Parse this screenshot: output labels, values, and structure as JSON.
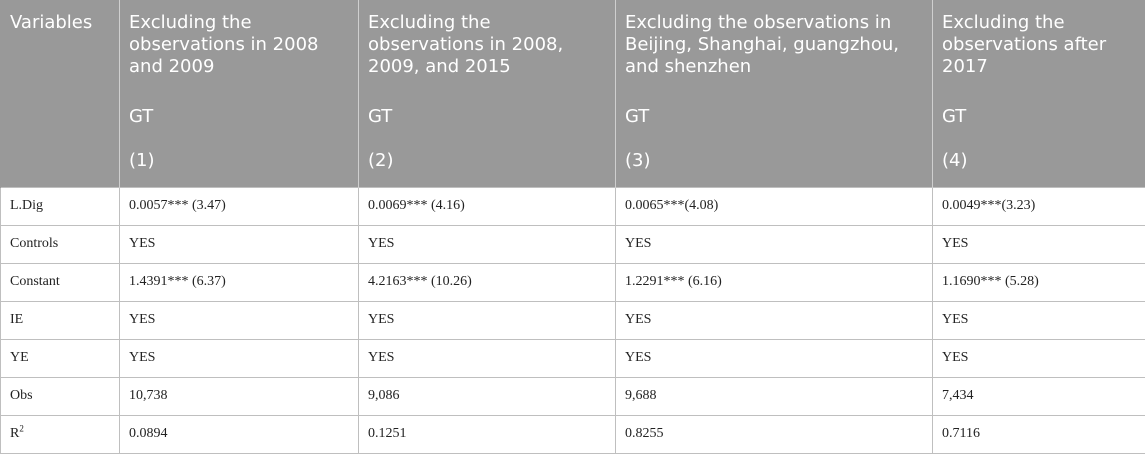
{
  "header": {
    "columns": [
      "Variables",
      "Excluding the observations in 2008 and 2009",
      "Excluding the observations in 2008, 2009, and 2015",
      "Excluding the observations in Beijing, Shanghai, guangzhou, and shenzhen",
      "Excluding the observations after 2017"
    ],
    "dependent": [
      "GT",
      "GT",
      "GT",
      "GT"
    ],
    "numbers": [
      "(1)",
      "(2)",
      "(3)",
      "(4)"
    ]
  },
  "rows": [
    {
      "label": "L.Dig",
      "values": [
        "0.0057*** (3.47)",
        "0.0069*** (4.16)",
        "0.0065***(4.08)",
        "0.0049***(3.23)"
      ]
    },
    {
      "label": "Controls",
      "values": [
        "YES",
        "YES",
        "YES",
        "YES"
      ]
    },
    {
      "label": "Constant",
      "values": [
        "1.4391*** (6.37)",
        "4.2163*** (10.26)",
        "1.2291*** (6.16)",
        "1.1690*** (5.28)"
      ]
    },
    {
      "label": "IE",
      "values": [
        "YES",
        "YES",
        "YES",
        "YES"
      ]
    },
    {
      "label": "YE",
      "values": [
        "YES",
        "YES",
        "YES",
        "YES"
      ]
    },
    {
      "label": "Obs",
      "values": [
        "10,738",
        "9,086",
        "9,688",
        "7,434"
      ]
    },
    {
      "label": "R",
      "label_sup": "2",
      "values": [
        "0.0894",
        "0.1251",
        "0.8255",
        "0.7116"
      ]
    }
  ]
}
